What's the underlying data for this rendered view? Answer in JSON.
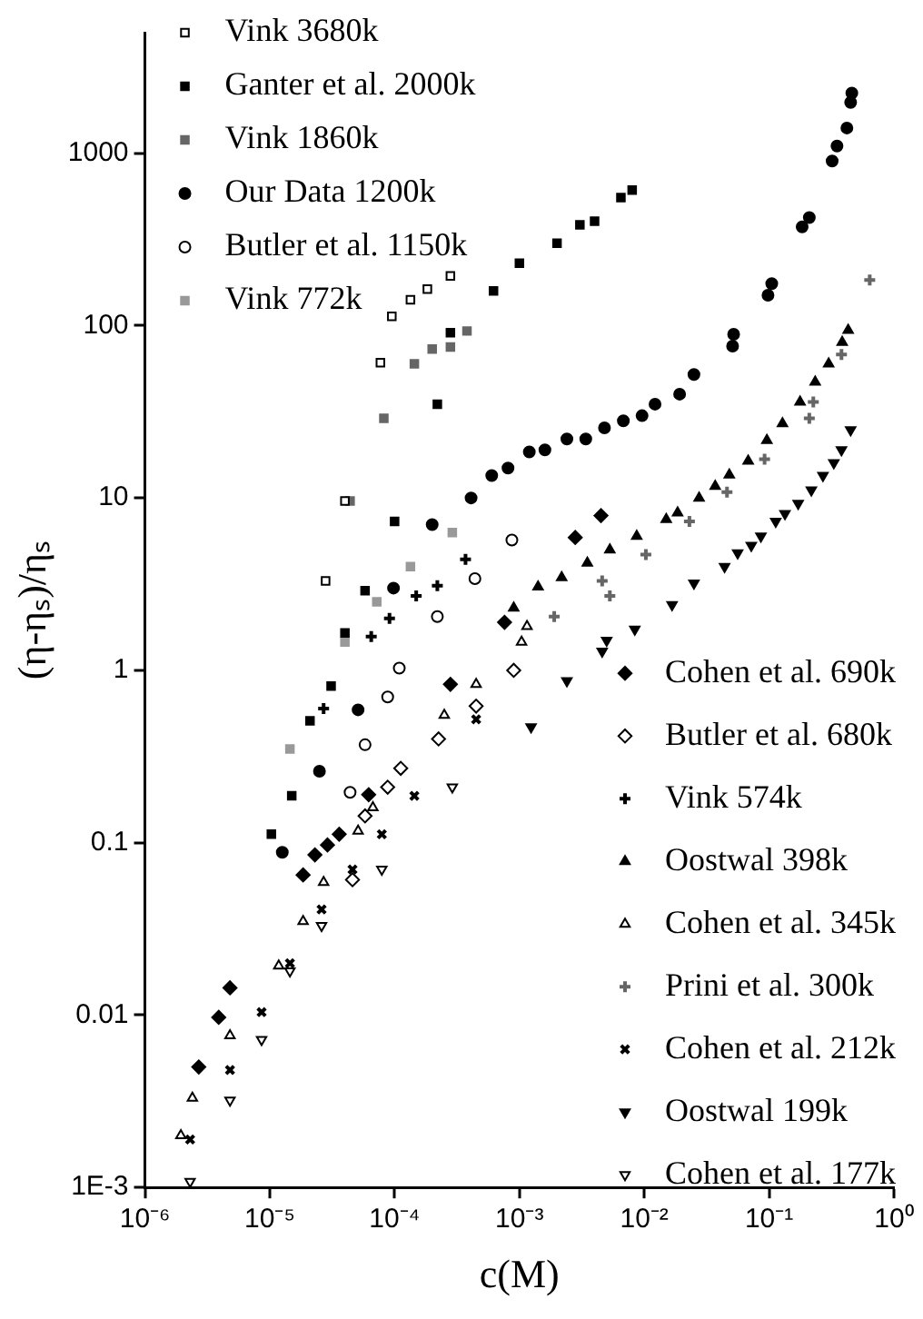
{
  "chart_data": {
    "type": "scatter",
    "xlabel": "c(M)",
    "ylabel": "(η-ηₛ)/ηₛ",
    "log": "xy",
    "grid": false,
    "legend": "top left",
    "xlim": [
      1e-06,
      1
    ],
    "ylim": [
      0.001,
      5000
    ],
    "xticks": [
      {
        "value": 1e-06,
        "label": "10⁻⁶"
      },
      {
        "value": 1e-05,
        "label": "10⁻⁵"
      },
      {
        "value": 0.0001,
        "label": "10⁻⁴"
      },
      {
        "value": 0.001,
        "label": "10⁻³"
      },
      {
        "value": 0.01,
        "label": "10⁻²"
      },
      {
        "value": 0.1,
        "label": "10⁻¹"
      },
      {
        "value": 1,
        "label": "10⁰"
      }
    ],
    "yticks": [
      {
        "value": 0.001,
        "label": "1E-3"
      },
      0.01,
      0.1,
      1,
      10,
      100,
      1000
    ],
    "series": [
      {
        "name": "Vink 3680k",
        "color": "#000000",
        "marker": "square-open",
        "x": [
          2.8e-05,
          4e-05,
          7.7e-05,
          9.5e-05,
          0.000134,
          0.000183,
          0.00028
        ],
        "values": [
          3.3,
          9.6,
          61,
          113,
          141,
          163,
          194
        ]
      },
      {
        "name": "Ganter et al. 2000k",
        "color": "#000000",
        "marker": "square",
        "x": [
          1.03e-05,
          1.5e-05,
          2.1e-05,
          3.1e-05,
          4e-05,
          5.8e-05,
          0.0001,
          0.00022,
          0.00028,
          0.00062,
          0.001,
          0.002,
          0.00305,
          0.004,
          0.0065,
          0.008
        ],
        "values": [
          0.112,
          0.187,
          0.51,
          0.81,
          1.65,
          2.9,
          7.3,
          35,
          91,
          159,
          230,
          300,
          384,
          403,
          553,
          611
        ]
      },
      {
        "name": "Vink 1860k",
        "color": "#666666",
        "marker": "square",
        "x": [
          4.4e-05,
          8.2e-05,
          0.000144,
          0.0002,
          0.00028,
          0.00038
        ],
        "values": [
          9.6,
          29,
          60,
          73,
          75,
          93
        ]
      },
      {
        "name": "Our Data 1200k",
        "color": "#000000",
        "marker": "circle",
        "x": [
          1.26e-05,
          2.5e-05,
          5.1e-05,
          9.8e-05,
          0.0002,
          0.00041,
          0.0006,
          0.00081,
          0.0012,
          0.0016,
          0.0024,
          0.0034,
          0.0048,
          0.0068,
          0.0096,
          0.0122,
          0.0192,
          0.025,
          0.051,
          0.052,
          0.098,
          0.105,
          0.184,
          0.21,
          0.32,
          0.35,
          0.42,
          0.45,
          0.46
        ],
        "values": [
          0.088,
          0.26,
          0.59,
          3.0,
          7.0,
          10,
          13.5,
          14.9,
          18.5,
          19,
          22,
          22,
          25.5,
          28,
          30,
          35,
          40,
          52,
          76,
          89,
          150,
          175,
          374,
          423,
          900,
          1100,
          1400,
          1970,
          2230
        ]
      },
      {
        "name": "Butler et al. 1150k",
        "color": "#000000",
        "marker": "circle-open",
        "x": [
          4.4e-05,
          5.8e-05,
          8.8e-05,
          0.000109,
          0.00022,
          0.00044,
          0.00087
        ],
        "values": [
          0.196,
          0.37,
          0.7,
          1.03,
          2.05,
          3.4,
          5.7
        ]
      },
      {
        "name": "Vink 772k",
        "color": "#999999",
        "marker": "square",
        "x": [
          1.45e-05,
          4e-05,
          7.2e-05,
          0.000134,
          0.00029
        ],
        "values": [
          0.35,
          1.46,
          2.5,
          4.0,
          6.3
        ]
      },
      {
        "name": "Cohen et al. 690k",
        "color": "#000000",
        "marker": "diamond",
        "x": [
          2.7e-06,
          3.9e-06,
          4.8e-06,
          1.85e-05,
          2.3e-05,
          2.9e-05,
          3.6e-05,
          6.2e-05,
          0.00028,
          0.00076,
          0.0028,
          0.0045
        ],
        "values": [
          0.005,
          0.0097,
          0.0144,
          0.065,
          0.085,
          0.097,
          0.112,
          0.19,
          0.83,
          1.9,
          5.9,
          7.9
        ]
      },
      {
        "name": "Butler et al. 680k",
        "color": "#000000",
        "marker": "diamond-open",
        "x": [
          4.6e-05,
          5.8e-05,
          8.8e-05,
          0.000112,
          0.000225,
          0.00045,
          0.0009
        ],
        "values": [
          0.061,
          0.143,
          0.21,
          0.27,
          0.4,
          0.62,
          1.0
        ]
      },
      {
        "name": "Vink 574k",
        "color": "#000000",
        "marker": "cross",
        "x": [
          2.7e-05,
          6.5e-05,
          9.1e-05,
          0.000149,
          0.00022,
          0.00037
        ],
        "values": [
          0.6,
          1.57,
          2.0,
          2.7,
          3.1,
          4.4
        ]
      },
      {
        "name": "Oostwal 398k",
        "color": "#000000",
        "marker": "triangle",
        "x": [
          0.0009,
          0.00141,
          0.00218,
          0.0035,
          0.0053,
          0.0087,
          0.015,
          0.0185,
          0.0275,
          0.037,
          0.048,
          0.068,
          0.096,
          0.128,
          0.177,
          0.234,
          0.3,
          0.385,
          0.43
        ],
        "values": [
          2.3,
          3.05,
          3.45,
          4.2,
          5.0,
          6.0,
          7.5,
          8.2,
          10,
          11.7,
          13.6,
          16.4,
          21.6,
          27,
          36,
          47,
          60,
          80,
          94
        ]
      },
      {
        "name": "Cohen et al. 345k",
        "color": "#000000",
        "marker": "triangle-open",
        "x": [
          1.94e-06,
          2.4e-06,
          4.8e-06,
          1.18e-05,
          1.85e-05,
          2.7e-05,
          5.1e-05,
          6.7e-05,
          0.00025,
          0.00045,
          0.00104,
          0.00115
        ],
        "values": [
          0.002,
          0.0033,
          0.0076,
          0.0193,
          0.035,
          0.059,
          0.117,
          0.16,
          0.55,
          0.83,
          1.46,
          1.8
        ]
      },
      {
        "name": "Prini et al. 300k",
        "color": "#666666",
        "marker": "cross",
        "x": [
          0.0019,
          0.0046,
          0.0053,
          0.0103,
          0.023,
          0.046,
          0.092,
          0.21,
          0.226,
          0.38,
          0.64
        ],
        "values": [
          2.05,
          3.3,
          2.7,
          4.7,
          7.3,
          10.8,
          16.8,
          29,
          36,
          68,
          184
        ]
      },
      {
        "name": "Cohen et al. 212k",
        "color": "#000000",
        "marker": "cross-x",
        "x": [
          2.3e-06,
          4.8e-06,
          8.6e-06,
          1.45e-05,
          2.6e-05,
          4.6e-05,
          7.9e-05,
          0.000144,
          0.00045
        ],
        "values": [
          0.0019,
          0.0048,
          0.0104,
          0.02,
          0.041,
          0.07,
          0.112,
          0.187,
          0.52
        ]
      },
      {
        "name": "Oostwal 199k",
        "color": "#000000",
        "marker": "triangle-down",
        "x": [
          0.00124,
          0.0024,
          0.0046,
          0.005,
          0.0084,
          0.0167,
          0.025,
          0.044,
          0.056,
          0.072,
          0.086,
          0.113,
          0.134,
          0.171,
          0.218,
          0.27,
          0.33,
          0.38,
          0.45
        ],
        "values": [
          0.47,
          0.87,
          1.29,
          1.49,
          1.73,
          2.4,
          3.2,
          4.0,
          4.8,
          5.3,
          6.0,
          7.3,
          8.1,
          9.3,
          11.1,
          13.5,
          16,
          19,
          24.8
        ]
      },
      {
        "name": "Cohen et al. 177k",
        "color": "#000000",
        "marker": "triangle-down-open",
        "x": [
          2.3e-06,
          4.8e-06,
          8.6e-06,
          1.45e-05,
          2.6e-05,
          7.9e-05,
          0.00029
        ],
        "values": [
          0.00108,
          0.0032,
          0.0072,
          0.018,
          0.033,
          0.07,
          0.21
        ]
      }
    ]
  }
}
